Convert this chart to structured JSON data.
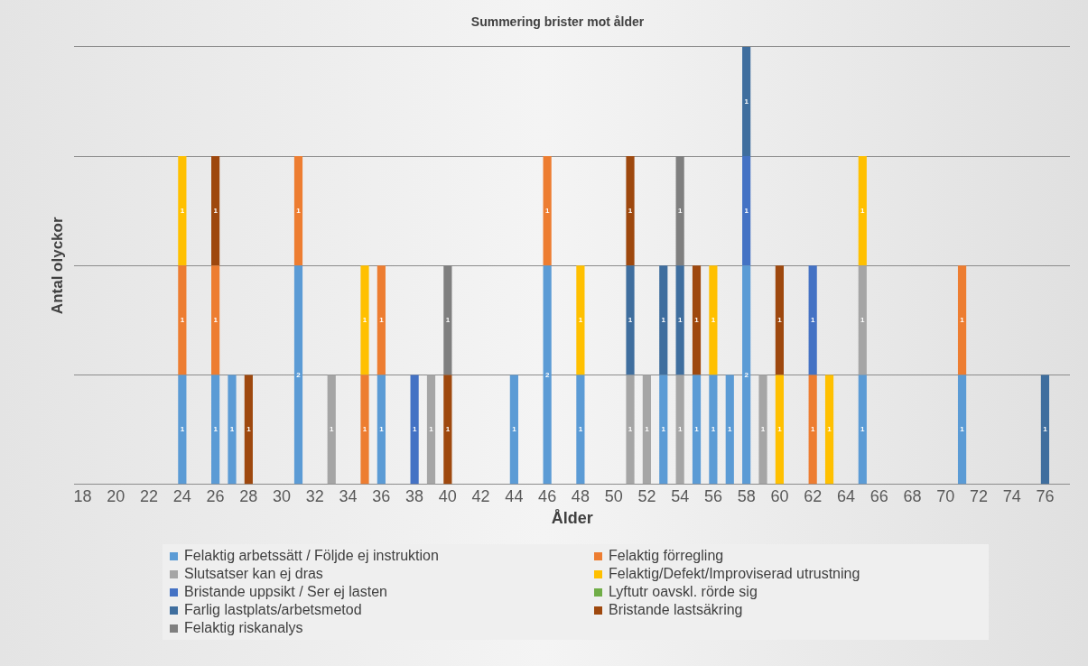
{
  "chart_data": {
    "type": "bar",
    "stacked": true,
    "title": "Summering brister mot ålder",
    "xlabel": "Ålder",
    "ylabel": "Antal olyckor",
    "categories": [
      "18",
      null,
      "20",
      null,
      "22",
      null,
      "24",
      null,
      "26",
      null,
      "28",
      null,
      "30",
      null,
      "32",
      null,
      "34",
      null,
      "36",
      null,
      "38",
      null,
      "40",
      null,
      "42",
      null,
      "44",
      null,
      "46",
      null,
      "48",
      null,
      "50",
      null,
      "52",
      null,
      "54",
      null,
      "56",
      null,
      "58",
      null,
      "60",
      null,
      "62",
      null,
      "64",
      null,
      "66",
      null,
      "68",
      null,
      "70",
      null,
      "72",
      null,
      "74",
      null,
      "76",
      null
    ],
    "series": [
      {
        "name": "Felaktig arbetssätt / Följde ej instruktion",
        "color": "#5b9bd5",
        "values": [
          null,
          null,
          null,
          null,
          null,
          null,
          1,
          null,
          1,
          1,
          null,
          null,
          null,
          2,
          null,
          null,
          null,
          null,
          1,
          null,
          null,
          null,
          null,
          null,
          null,
          null,
          1,
          null,
          2,
          null,
          1,
          null,
          null,
          null,
          null,
          1,
          null,
          1,
          1,
          1,
          2,
          null,
          null,
          null,
          null,
          null,
          null,
          1,
          null,
          null,
          null,
          null,
          null,
          1,
          null,
          null,
          null,
          null,
          null,
          null
        ]
      },
      {
        "name": "Felaktig förregling",
        "color": "#ed7d31",
        "values": [
          null,
          null,
          null,
          null,
          null,
          null,
          1,
          null,
          1,
          null,
          null,
          null,
          null,
          1,
          null,
          null,
          null,
          1,
          1,
          null,
          null,
          null,
          null,
          null,
          null,
          null,
          null,
          null,
          1,
          null,
          null,
          null,
          null,
          null,
          null,
          null,
          null,
          null,
          null,
          null,
          null,
          null,
          null,
          null,
          1,
          null,
          null,
          null,
          null,
          null,
          null,
          null,
          null,
          1,
          null,
          null,
          null,
          null,
          null,
          null
        ]
      },
      {
        "name": "Slutsatser kan ej dras",
        "color": "#a5a5a5",
        "values": [
          null,
          null,
          null,
          null,
          null,
          null,
          null,
          null,
          null,
          null,
          null,
          null,
          null,
          null,
          null,
          1,
          null,
          null,
          null,
          null,
          null,
          1,
          null,
          null,
          null,
          null,
          null,
          null,
          null,
          null,
          null,
          null,
          null,
          1,
          1,
          null,
          1,
          null,
          null,
          null,
          null,
          1,
          null,
          null,
          null,
          null,
          null,
          1,
          null,
          null,
          null,
          null,
          null,
          null,
          null,
          null,
          null,
          null,
          null,
          null
        ]
      },
      {
        "name": "Felaktig/Defekt/Improviserad utrustning",
        "color": "#ffc000",
        "values": [
          null,
          null,
          null,
          null,
          null,
          null,
          1,
          null,
          null,
          null,
          null,
          null,
          null,
          null,
          null,
          null,
          null,
          1,
          null,
          null,
          null,
          null,
          null,
          null,
          null,
          null,
          null,
          null,
          null,
          null,
          1,
          null,
          null,
          null,
          null,
          null,
          null,
          null,
          1,
          null,
          null,
          null,
          1,
          null,
          null,
          1,
          null,
          1,
          null,
          null,
          null,
          null,
          null,
          null,
          null,
          null,
          null,
          null,
          null,
          null
        ]
      },
      {
        "name": "Bristande uppsikt / Ser ej lasten",
        "color": "#4472c4",
        "values": [
          null,
          null,
          null,
          null,
          null,
          null,
          null,
          null,
          null,
          null,
          null,
          null,
          null,
          null,
          null,
          null,
          null,
          null,
          null,
          null,
          1,
          null,
          null,
          null,
          null,
          null,
          null,
          null,
          null,
          null,
          null,
          null,
          null,
          null,
          null,
          null,
          null,
          null,
          null,
          null,
          1,
          null,
          null,
          null,
          1,
          null,
          null,
          null,
          null,
          null,
          null,
          null,
          null,
          null,
          null,
          null,
          null,
          null,
          null,
          null
        ]
      },
      {
        "name": "Lyftutr oavskl. rörde sig",
        "color": "#70ad47",
        "values": [
          null,
          null,
          null,
          null,
          null,
          null,
          null,
          null,
          null,
          null,
          null,
          null,
          null,
          null,
          null,
          null,
          null,
          null,
          null,
          null,
          null,
          null,
          null,
          null,
          null,
          null,
          null,
          null,
          null,
          null,
          null,
          null,
          null,
          null,
          null,
          null,
          null,
          null,
          null,
          null,
          null,
          null,
          null,
          null,
          null,
          null,
          null,
          null,
          null,
          null,
          null,
          null,
          null,
          null,
          null,
          null,
          null,
          null,
          null,
          null
        ]
      },
      {
        "name": "Farlig lastplats/arbetsmetod",
        "color": "#3f6e9e",
        "values": [
          null,
          null,
          null,
          null,
          null,
          null,
          null,
          null,
          null,
          null,
          null,
          null,
          null,
          null,
          null,
          null,
          null,
          null,
          null,
          null,
          null,
          null,
          null,
          null,
          null,
          null,
          null,
          null,
          null,
          null,
          null,
          null,
          null,
          1,
          null,
          1,
          1,
          null,
          null,
          null,
          1,
          null,
          null,
          null,
          null,
          null,
          null,
          null,
          null,
          null,
          null,
          null,
          null,
          null,
          null,
          null,
          null,
          null,
          1,
          null
        ]
      },
      {
        "name": "Bristande lastsäkring",
        "color": "#9e480e",
        "values": [
          null,
          null,
          null,
          null,
          null,
          null,
          null,
          null,
          1,
          null,
          1,
          null,
          null,
          null,
          null,
          null,
          null,
          null,
          null,
          null,
          null,
          null,
          1,
          null,
          null,
          null,
          null,
          null,
          null,
          null,
          null,
          null,
          null,
          1,
          null,
          null,
          null,
          1,
          null,
          null,
          null,
          null,
          1,
          null,
          null,
          null,
          null,
          null,
          null,
          null,
          null,
          null,
          null,
          null,
          null,
          null,
          null,
          null,
          null,
          null
        ]
      },
      {
        "name": "Felaktig riskanalys",
        "color": "#7f7f7f",
        "values": [
          null,
          null,
          null,
          null,
          null,
          null,
          null,
          null,
          null,
          null,
          null,
          null,
          null,
          null,
          null,
          null,
          null,
          null,
          null,
          null,
          null,
          null,
          1,
          null,
          null,
          null,
          null,
          null,
          null,
          null,
          null,
          null,
          null,
          null,
          null,
          null,
          1,
          null,
          null,
          null,
          null,
          null,
          null,
          null,
          null,
          null,
          null,
          null,
          null,
          null,
          null,
          null,
          null,
          null,
          null,
          null,
          null,
          null,
          null,
          null
        ]
      }
    ],
    "ylim": [
      0,
      4
    ],
    "yticks": [
      {
        "value": 0,
        "label": null
      },
      {
        "value": 1,
        "label": null
      },
      {
        "value": 2,
        "label": null
      },
      {
        "value": 3,
        "label": null
      },
      {
        "value": 4,
        "label": null
      }
    ],
    "tick_labels": "x",
    "grid": "y",
    "legend": "bottom",
    "data_labels": true
  }
}
